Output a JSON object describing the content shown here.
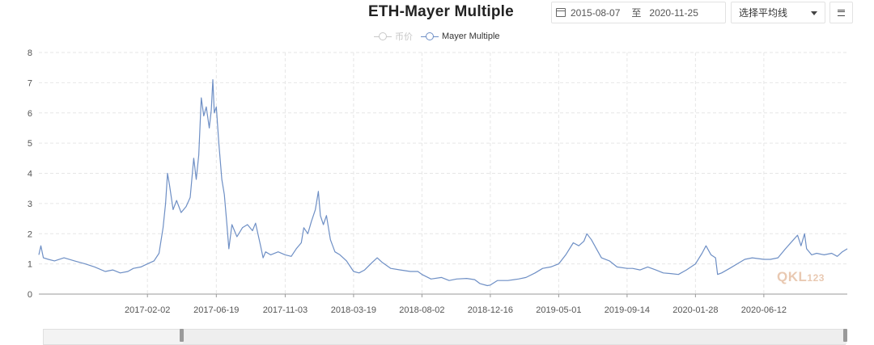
{
  "header": {
    "title": "ETH-Mayer Multiple",
    "date_from": "2015-08-07",
    "date_sep": "至",
    "date_to": "2020-11-25",
    "ma_select": "选择平均线"
  },
  "legend": [
    {
      "name": "币价",
      "color": "#cccccc",
      "state": "disabled"
    },
    {
      "name": "Mayer Multiple",
      "color": "#6e8fc5",
      "state": "active"
    }
  ],
  "watermark": {
    "text": "QKL",
    "sub": "123"
  },
  "chart_data": {
    "type": "line",
    "title": "ETH-Mayer Multiple",
    "xlabel": "",
    "ylabel": "",
    "ylim": [
      0,
      8
    ],
    "yticks": [
      0,
      1,
      2,
      3,
      4,
      5,
      6,
      7,
      8
    ],
    "xlim": [
      "2016-07-01",
      "2020-11-25"
    ],
    "xticks": [
      "2017-02-02",
      "2017-06-19",
      "2017-11-03",
      "2018-03-19",
      "2018-08-02",
      "2018-12-16",
      "2019-05-01",
      "2019-09-14",
      "2020-01-28",
      "2020-06-12"
    ],
    "grid": true,
    "legend_position": "top-center",
    "series": [
      {
        "name": "Mayer Multiple",
        "color": "#6e8fc5",
        "points": [
          [
            "2016-07-01",
            1.3
          ],
          [
            "2016-07-05",
            1.6
          ],
          [
            "2016-07-10",
            1.2
          ],
          [
            "2016-07-20",
            1.15
          ],
          [
            "2016-08-01",
            1.1
          ],
          [
            "2016-08-20",
            1.2
          ],
          [
            "2016-09-10",
            1.1
          ],
          [
            "2016-10-01",
            1.0
          ],
          [
            "2016-10-20",
            0.9
          ],
          [
            "2016-11-10",
            0.75
          ],
          [
            "2016-11-25",
            0.8
          ],
          [
            "2016-12-10",
            0.7
          ],
          [
            "2016-12-25",
            0.75
          ],
          [
            "2017-01-05",
            0.85
          ],
          [
            "2017-01-20",
            0.9
          ],
          [
            "2017-02-02",
            1.0
          ],
          [
            "2017-02-15",
            1.1
          ],
          [
            "2017-02-25",
            1.35
          ],
          [
            "2017-03-05",
            2.2
          ],
          [
            "2017-03-10",
            3.0
          ],
          [
            "2017-03-14",
            4.0
          ],
          [
            "2017-03-18",
            3.6
          ],
          [
            "2017-03-25",
            2.8
          ],
          [
            "2017-04-01",
            3.1
          ],
          [
            "2017-04-10",
            2.7
          ],
          [
            "2017-04-20",
            2.9
          ],
          [
            "2017-04-28",
            3.2
          ],
          [
            "2017-05-05",
            4.5
          ],
          [
            "2017-05-10",
            3.8
          ],
          [
            "2017-05-15",
            4.6
          ],
          [
            "2017-05-20",
            6.5
          ],
          [
            "2017-05-25",
            5.9
          ],
          [
            "2017-05-30",
            6.2
          ],
          [
            "2017-06-05",
            5.5
          ],
          [
            "2017-06-09",
            6.1
          ],
          [
            "2017-06-12",
            7.1
          ],
          [
            "2017-06-15",
            6.0
          ],
          [
            "2017-06-19",
            6.2
          ],
          [
            "2017-06-24",
            5.0
          ],
          [
            "2017-06-30",
            3.8
          ],
          [
            "2017-07-05",
            3.3
          ],
          [
            "2017-07-10",
            2.3
          ],
          [
            "2017-07-14",
            1.5
          ],
          [
            "2017-07-20",
            2.3
          ],
          [
            "2017-07-30",
            1.9
          ],
          [
            "2017-08-10",
            2.2
          ],
          [
            "2017-08-20",
            2.3
          ],
          [
            "2017-08-30",
            2.1
          ],
          [
            "2017-09-05",
            2.35
          ],
          [
            "2017-09-15",
            1.6
          ],
          [
            "2017-09-20",
            1.2
          ],
          [
            "2017-09-25",
            1.4
          ],
          [
            "2017-10-05",
            1.3
          ],
          [
            "2017-10-20",
            1.4
          ],
          [
            "2017-11-03",
            1.3
          ],
          [
            "2017-11-15",
            1.25
          ],
          [
            "2017-11-25",
            1.5
          ],
          [
            "2017-12-05",
            1.7
          ],
          [
            "2017-12-10",
            2.2
          ],
          [
            "2017-12-18",
            2.0
          ],
          [
            "2017-12-25",
            2.4
          ],
          [
            "2018-01-02",
            2.8
          ],
          [
            "2018-01-08",
            3.4
          ],
          [
            "2018-01-12",
            2.6
          ],
          [
            "2018-01-18",
            2.3
          ],
          [
            "2018-01-24",
            2.6
          ],
          [
            "2018-02-01",
            1.8
          ],
          [
            "2018-02-10",
            1.4
          ],
          [
            "2018-02-20",
            1.3
          ],
          [
            "2018-03-05",
            1.1
          ],
          [
            "2018-03-19",
            0.75
          ],
          [
            "2018-03-30",
            0.7
          ],
          [
            "2018-04-10",
            0.8
          ],
          [
            "2018-04-25",
            1.05
          ],
          [
            "2018-05-05",
            1.2
          ],
          [
            "2018-05-15",
            1.05
          ],
          [
            "2018-06-01",
            0.85
          ],
          [
            "2018-06-20",
            0.8
          ],
          [
            "2018-07-10",
            0.75
          ],
          [
            "2018-07-25",
            0.75
          ],
          [
            "2018-08-02",
            0.65
          ],
          [
            "2018-08-20",
            0.5
          ],
          [
            "2018-09-10",
            0.55
          ],
          [
            "2018-09-25",
            0.45
          ],
          [
            "2018-10-10",
            0.5
          ],
          [
            "2018-10-30",
            0.52
          ],
          [
            "2018-11-15",
            0.48
          ],
          [
            "2018-11-25",
            0.35
          ],
          [
            "2018-12-10",
            0.28
          ],
          [
            "2018-12-16",
            0.3
          ],
          [
            "2018-12-30",
            0.45
          ],
          [
            "2019-01-20",
            0.45
          ],
          [
            "2019-02-10",
            0.5
          ],
          [
            "2019-02-25",
            0.55
          ],
          [
            "2019-03-15",
            0.7
          ],
          [
            "2019-03-30",
            0.85
          ],
          [
            "2019-04-15",
            0.9
          ],
          [
            "2019-05-01",
            1.0
          ],
          [
            "2019-05-15",
            1.3
          ],
          [
            "2019-05-30",
            1.7
          ],
          [
            "2019-06-10",
            1.6
          ],
          [
            "2019-06-20",
            1.75
          ],
          [
            "2019-06-26",
            2.0
          ],
          [
            "2019-07-05",
            1.8
          ],
          [
            "2019-07-15",
            1.5
          ],
          [
            "2019-07-25",
            1.2
          ],
          [
            "2019-08-10",
            1.1
          ],
          [
            "2019-08-25",
            0.9
          ],
          [
            "2019-09-14",
            0.85
          ],
          [
            "2019-09-25",
            0.85
          ],
          [
            "2019-10-10",
            0.8
          ],
          [
            "2019-10-25",
            0.9
          ],
          [
            "2019-11-10",
            0.8
          ],
          [
            "2019-11-25",
            0.7
          ],
          [
            "2019-12-10",
            0.68
          ],
          [
            "2019-12-25",
            0.65
          ],
          [
            "2020-01-10",
            0.8
          ],
          [
            "2020-01-28",
            1.0
          ],
          [
            "2020-02-10",
            1.35
          ],
          [
            "2020-02-18",
            1.6
          ],
          [
            "2020-02-28",
            1.3
          ],
          [
            "2020-03-08",
            1.2
          ],
          [
            "2020-03-12",
            0.65
          ],
          [
            "2020-03-20",
            0.7
          ],
          [
            "2020-04-05",
            0.85
          ],
          [
            "2020-04-20",
            1.0
          ],
          [
            "2020-05-05",
            1.15
          ],
          [
            "2020-05-20",
            1.2
          ],
          [
            "2020-06-12",
            1.15
          ],
          [
            "2020-06-25",
            1.15
          ],
          [
            "2020-07-10",
            1.2
          ],
          [
            "2020-07-25",
            1.5
          ],
          [
            "2020-08-10",
            1.8
          ],
          [
            "2020-08-18",
            1.95
          ],
          [
            "2020-08-25",
            1.6
          ],
          [
            "2020-09-01",
            2.0
          ],
          [
            "2020-09-05",
            1.5
          ],
          [
            "2020-09-15",
            1.3
          ],
          [
            "2020-09-25",
            1.35
          ],
          [
            "2020-10-10",
            1.3
          ],
          [
            "2020-10-25",
            1.35
          ],
          [
            "2020-11-05",
            1.25
          ],
          [
            "2020-11-15",
            1.4
          ],
          [
            "2020-11-25",
            1.5
          ]
        ]
      }
    ]
  }
}
